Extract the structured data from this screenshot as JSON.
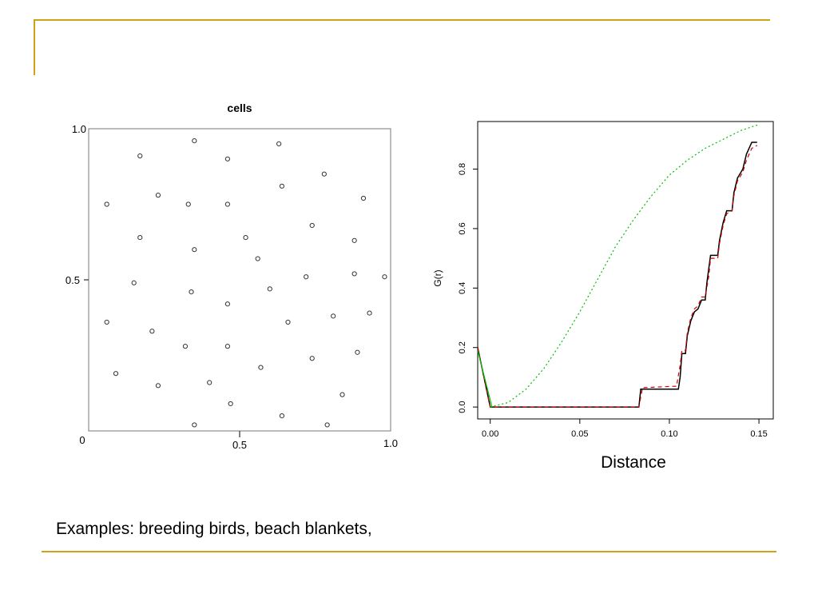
{
  "caption": "Examples: breeding birds, beach blankets,",
  "colors": {
    "rule": "#d4a017",
    "observed": "#000000",
    "theoretical": "#00c000",
    "envelope": "#d00000"
  },
  "chart_data": [
    {
      "type": "scatter",
      "title": "cells",
      "xlabel": "",
      "ylabel": "",
      "xlim": [
        0,
        1
      ],
      "ylim": [
        0,
        1
      ],
      "x_ticks": [
        "0",
        "0.5",
        "1.0"
      ],
      "y_ticks": [
        "0",
        "0.5",
        "1.0"
      ],
      "marker": "open-circle",
      "points": [
        [
          0.35,
          0.96
        ],
        [
          0.63,
          0.95
        ],
        [
          0.17,
          0.91
        ],
        [
          0.46,
          0.9
        ],
        [
          0.78,
          0.85
        ],
        [
          0.64,
          0.81
        ],
        [
          0.23,
          0.78
        ],
        [
          0.91,
          0.77
        ],
        [
          0.06,
          0.75
        ],
        [
          0.33,
          0.75
        ],
        [
          0.46,
          0.75
        ],
        [
          0.74,
          0.68
        ],
        [
          0.17,
          0.64
        ],
        [
          0.52,
          0.64
        ],
        [
          0.88,
          0.63
        ],
        [
          0.35,
          0.6
        ],
        [
          0.56,
          0.57
        ],
        [
          0.88,
          0.52
        ],
        [
          0.15,
          0.49
        ],
        [
          0.72,
          0.51
        ],
        [
          0.98,
          0.51
        ],
        [
          0.6,
          0.47
        ],
        [
          0.34,
          0.46
        ],
        [
          0.46,
          0.42
        ],
        [
          0.93,
          0.39
        ],
        [
          0.81,
          0.38
        ],
        [
          0.06,
          0.36
        ],
        [
          0.21,
          0.33
        ],
        [
          0.66,
          0.36
        ],
        [
          0.32,
          0.28
        ],
        [
          0.46,
          0.28
        ],
        [
          0.89,
          0.26
        ],
        [
          0.74,
          0.24
        ],
        [
          0.57,
          0.21
        ],
        [
          0.09,
          0.19
        ],
        [
          0.4,
          0.16
        ],
        [
          0.23,
          0.15
        ],
        [
          0.84,
          0.12
        ],
        [
          0.47,
          0.09
        ],
        [
          0.64,
          0.05
        ],
        [
          0.35,
          0.02
        ],
        [
          0.79,
          0.02
        ]
      ]
    },
    {
      "type": "line",
      "title": "",
      "xlabel": "Distance",
      "ylabel": "G(r)",
      "xlim": [
        -0.007,
        0.158
      ],
      "ylim": [
        -0.04,
        0.96
      ],
      "x_ticks": [
        "0.00",
        "0.05",
        "0.10",
        "0.15"
      ],
      "y_ticks": [
        "0.0",
        "0.2",
        "0.4",
        "0.6",
        "0.8"
      ],
      "series": [
        {
          "style": "solid",
          "color": "#000000",
          "points": [
            [
              -0.007,
              0.2
            ],
            [
              0.0,
              0.0
            ],
            [
              0.083,
              0.0
            ],
            [
              0.084,
              0.06
            ],
            [
              0.105,
              0.06
            ],
            [
              0.106,
              0.1
            ],
            [
              0.107,
              0.18
            ],
            [
              0.109,
              0.18
            ],
            [
              0.11,
              0.24
            ],
            [
              0.112,
              0.29
            ],
            [
              0.114,
              0.32
            ],
            [
              0.116,
              0.33
            ],
            [
              0.118,
              0.36
            ],
            [
              0.12,
              0.36
            ],
            [
              0.121,
              0.42
            ],
            [
              0.123,
              0.51
            ],
            [
              0.127,
              0.51
            ],
            [
              0.128,
              0.56
            ],
            [
              0.13,
              0.62
            ],
            [
              0.132,
              0.66
            ],
            [
              0.135,
              0.66
            ],
            [
              0.136,
              0.72
            ],
            [
              0.138,
              0.77
            ],
            [
              0.141,
              0.8
            ],
            [
              0.143,
              0.85
            ],
            [
              0.146,
              0.89
            ],
            [
              0.149,
              0.89
            ]
          ]
        },
        {
          "style": "dashed",
          "color": "#d00000",
          "points": [
            [
              -0.007,
              0.2
            ],
            [
              0.0,
              0.0
            ],
            [
              0.083,
              0.0
            ],
            [
              0.085,
              0.065
            ],
            [
              0.104,
              0.07
            ],
            [
              0.106,
              0.14
            ],
            [
              0.107,
              0.19
            ],
            [
              0.109,
              0.19
            ],
            [
              0.11,
              0.25
            ],
            [
              0.112,
              0.3
            ],
            [
              0.114,
              0.33
            ],
            [
              0.116,
              0.34
            ],
            [
              0.118,
              0.37
            ],
            [
              0.12,
              0.37
            ],
            [
              0.122,
              0.44
            ],
            [
              0.123,
              0.5
            ],
            [
              0.127,
              0.5
            ],
            [
              0.128,
              0.55
            ],
            [
              0.13,
              0.61
            ],
            [
              0.132,
              0.65
            ],
            [
              0.135,
              0.66
            ],
            [
              0.136,
              0.71
            ],
            [
              0.138,
              0.76
            ],
            [
              0.141,
              0.79
            ],
            [
              0.143,
              0.83
            ],
            [
              0.146,
              0.87
            ],
            [
              0.149,
              0.88
            ]
          ]
        },
        {
          "style": "solid",
          "color": "#00c000",
          "points": [
            [
              -0.007,
              0.19
            ],
            [
              0.001,
              0.0
            ]
          ]
        },
        {
          "style": "dotted",
          "color": "#00c000",
          "points": [
            [
              0.0,
              0.0
            ],
            [
              0.01,
              0.015
            ],
            [
              0.02,
              0.06
            ],
            [
              0.03,
              0.13
            ],
            [
              0.04,
              0.22
            ],
            [
              0.05,
              0.32
            ],
            [
              0.06,
              0.43
            ],
            [
              0.07,
              0.54
            ],
            [
              0.08,
              0.63
            ],
            [
              0.09,
              0.71
            ],
            [
              0.1,
              0.78
            ],
            [
              0.11,
              0.83
            ],
            [
              0.12,
              0.87
            ],
            [
              0.13,
              0.9
            ],
            [
              0.14,
              0.93
            ],
            [
              0.15,
              0.95
            ]
          ]
        }
      ]
    }
  ]
}
